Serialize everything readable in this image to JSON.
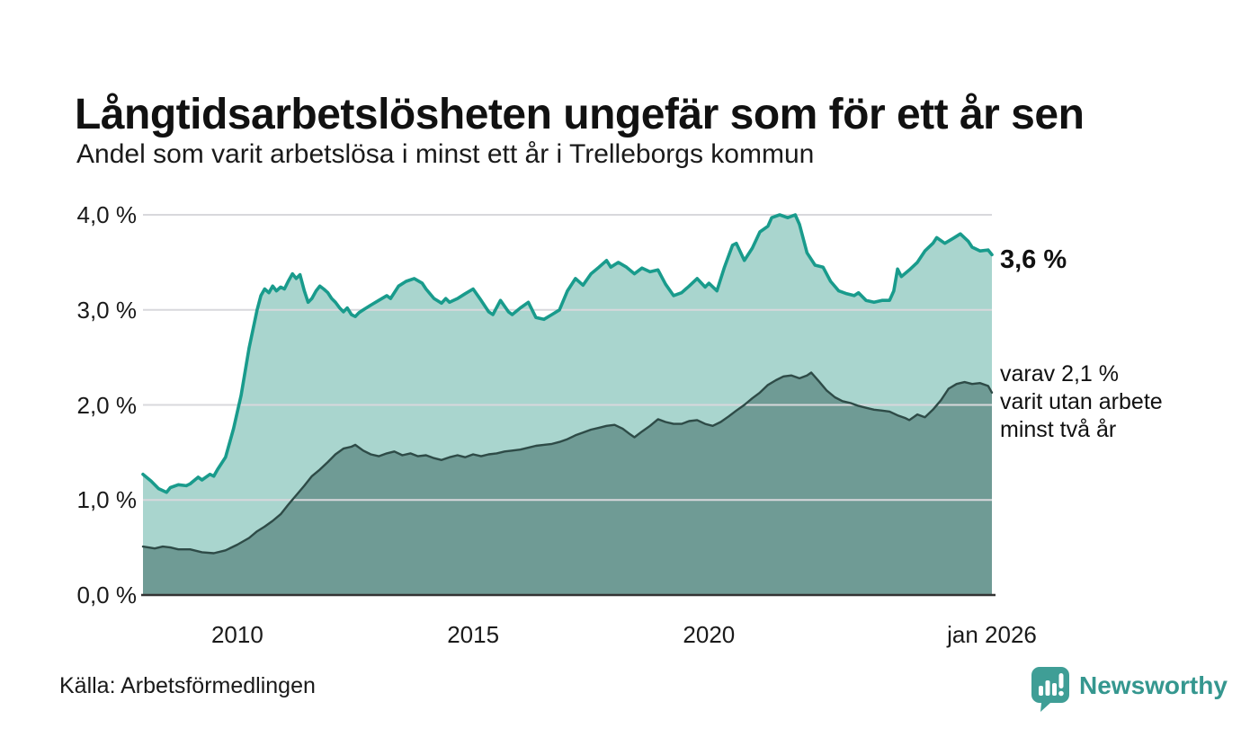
{
  "header": {
    "title": "Långtidsarbetslösheten ungefär som för ett år sen",
    "subtitle": "Andel som varit arbetslösa i minst ett år i Trelleborgs kommun"
  },
  "annotations": {
    "latest_total": "3,6 %",
    "subseries_lines": [
      "varav 2,1 %",
      "varit utan arbete",
      "minst två år"
    ]
  },
  "footer": {
    "source": "Källa: Arbetsförmedlingen",
    "brand": "Newsworthy"
  },
  "colors": {
    "accent_line": "#199b8c",
    "accent_fill": "#a9d5ce",
    "dark_line": "#2e4b47",
    "dark_fill": "#6f9b95",
    "gridline": "#d8d8dc",
    "axis": "#333333",
    "text": "#111111",
    "brand_teal": "#35978f",
    "logo_fill": "#3f9e96"
  },
  "chart_data": {
    "type": "area",
    "title": "Långtidsarbetslösheten ungefär som för ett år sen",
    "subtitle": "Andel som varit arbetslösa i minst ett år i Trelleborgs kommun",
    "xlabel": "",
    "ylabel": "",
    "xlim": [
      2008,
      2026.0
    ],
    "ylim": [
      0,
      4
    ],
    "grid": true,
    "legend_position": "annotated-right",
    "y_ticks": [
      {
        "value": 0,
        "label": "0,0 %"
      },
      {
        "value": 1,
        "label": "1,0 %"
      },
      {
        "value": 2,
        "label": "2,0 %"
      },
      {
        "value": 3,
        "label": "3,0 %"
      },
      {
        "value": 4,
        "label": "4,0 %"
      }
    ],
    "x_ticks": [
      {
        "value": 2010,
        "label": "2010"
      },
      {
        "value": 2015,
        "label": "2015"
      },
      {
        "value": 2020,
        "label": "2020"
      },
      {
        "value": 2026.0,
        "label": "jan 2026"
      }
    ],
    "series": [
      {
        "name": "Andel arbetslösa minst ett år",
        "end_label": "3,6 %",
        "color": "#199b8c",
        "fill": "#a9d5ce",
        "points": [
          [
            2008.0,
            1.27
          ],
          [
            2008.17,
            1.2
          ],
          [
            2008.33,
            1.12
          ],
          [
            2008.5,
            1.08
          ],
          [
            2008.58,
            1.13
          ],
          [
            2008.75,
            1.16
          ],
          [
            2008.92,
            1.15
          ],
          [
            2009.0,
            1.17
          ],
          [
            2009.17,
            1.24
          ],
          [
            2009.25,
            1.21
          ],
          [
            2009.42,
            1.27
          ],
          [
            2009.5,
            1.25
          ],
          [
            2009.58,
            1.32
          ],
          [
            2009.75,
            1.45
          ],
          [
            2009.92,
            1.75
          ],
          [
            2010.08,
            2.1
          ],
          [
            2010.25,
            2.6
          ],
          [
            2010.42,
            3.0
          ],
          [
            2010.5,
            3.15
          ],
          [
            2010.58,
            3.22
          ],
          [
            2010.67,
            3.18
          ],
          [
            2010.75,
            3.25
          ],
          [
            2010.83,
            3.2
          ],
          [
            2010.92,
            3.24
          ],
          [
            2011.0,
            3.22
          ],
          [
            2011.08,
            3.3
          ],
          [
            2011.17,
            3.38
          ],
          [
            2011.25,
            3.33
          ],
          [
            2011.33,
            3.37
          ],
          [
            2011.42,
            3.2
          ],
          [
            2011.5,
            3.08
          ],
          [
            2011.58,
            3.12
          ],
          [
            2011.67,
            3.2
          ],
          [
            2011.75,
            3.25
          ],
          [
            2011.83,
            3.22
          ],
          [
            2011.92,
            3.18
          ],
          [
            2012.0,
            3.12
          ],
          [
            2012.08,
            3.08
          ],
          [
            2012.17,
            3.02
          ],
          [
            2012.25,
            2.98
          ],
          [
            2012.33,
            3.02
          ],
          [
            2012.42,
            2.95
          ],
          [
            2012.5,
            2.93
          ],
          [
            2012.58,
            2.97
          ],
          [
            2012.67,
            3.0
          ],
          [
            2012.83,
            3.05
          ],
          [
            2013.0,
            3.1
          ],
          [
            2013.17,
            3.15
          ],
          [
            2013.25,
            3.12
          ],
          [
            2013.42,
            3.25
          ],
          [
            2013.58,
            3.3
          ],
          [
            2013.75,
            3.33
          ],
          [
            2013.92,
            3.28
          ],
          [
            2014.0,
            3.22
          ],
          [
            2014.17,
            3.12
          ],
          [
            2014.33,
            3.07
          ],
          [
            2014.42,
            3.12
          ],
          [
            2014.5,
            3.08
          ],
          [
            2014.67,
            3.12
          ],
          [
            2014.83,
            3.17
          ],
          [
            2015.0,
            3.22
          ],
          [
            2015.17,
            3.1
          ],
          [
            2015.33,
            2.98
          ],
          [
            2015.42,
            2.95
          ],
          [
            2015.58,
            3.1
          ],
          [
            2015.75,
            2.98
          ],
          [
            2015.83,
            2.95
          ],
          [
            2016.0,
            3.02
          ],
          [
            2016.17,
            3.08
          ],
          [
            2016.33,
            2.92
          ],
          [
            2016.5,
            2.9
          ],
          [
            2016.67,
            2.95
          ],
          [
            2016.83,
            3.0
          ],
          [
            2017.0,
            3.2
          ],
          [
            2017.17,
            3.33
          ],
          [
            2017.33,
            3.26
          ],
          [
            2017.5,
            3.38
          ],
          [
            2017.67,
            3.45
          ],
          [
            2017.83,
            3.52
          ],
          [
            2017.92,
            3.45
          ],
          [
            2018.08,
            3.5
          ],
          [
            2018.25,
            3.45
          ],
          [
            2018.42,
            3.38
          ],
          [
            2018.58,
            3.44
          ],
          [
            2018.75,
            3.4
          ],
          [
            2018.92,
            3.42
          ],
          [
            2019.08,
            3.27
          ],
          [
            2019.25,
            3.15
          ],
          [
            2019.42,
            3.18
          ],
          [
            2019.58,
            3.25
          ],
          [
            2019.75,
            3.33
          ],
          [
            2019.92,
            3.24
          ],
          [
            2020.0,
            3.28
          ],
          [
            2020.17,
            3.2
          ],
          [
            2020.33,
            3.45
          ],
          [
            2020.5,
            3.68
          ],
          [
            2020.58,
            3.7
          ],
          [
            2020.75,
            3.52
          ],
          [
            2020.92,
            3.65
          ],
          [
            2021.08,
            3.82
          ],
          [
            2021.25,
            3.88
          ],
          [
            2021.33,
            3.97
          ],
          [
            2021.5,
            4.0
          ],
          [
            2021.67,
            3.97
          ],
          [
            2021.83,
            4.0
          ],
          [
            2021.92,
            3.9
          ],
          [
            2022.08,
            3.6
          ],
          [
            2022.25,
            3.47
          ],
          [
            2022.42,
            3.45
          ],
          [
            2022.58,
            3.3
          ],
          [
            2022.75,
            3.2
          ],
          [
            2022.92,
            3.17
          ],
          [
            2023.08,
            3.15
          ],
          [
            2023.17,
            3.18
          ],
          [
            2023.33,
            3.1
          ],
          [
            2023.5,
            3.08
          ],
          [
            2023.67,
            3.1
          ],
          [
            2023.83,
            3.1
          ],
          [
            2023.92,
            3.2
          ],
          [
            2024.0,
            3.43
          ],
          [
            2024.08,
            3.35
          ],
          [
            2024.25,
            3.42
          ],
          [
            2024.42,
            3.5
          ],
          [
            2024.58,
            3.62
          ],
          [
            2024.75,
            3.7
          ],
          [
            2024.83,
            3.76
          ],
          [
            2025.0,
            3.7
          ],
          [
            2025.17,
            3.75
          ],
          [
            2025.33,
            3.8
          ],
          [
            2025.5,
            3.72
          ],
          [
            2025.58,
            3.66
          ],
          [
            2025.75,
            3.62
          ],
          [
            2025.92,
            3.63
          ],
          [
            2026.0,
            3.58
          ]
        ]
      },
      {
        "name": "Andel arbetslösa minst två år",
        "end_label": "varav 2,1 % varit utan arbete minst två år",
        "color": "#2e4b47",
        "fill": "#6f9b95",
        "points": [
          [
            2008.0,
            0.51
          ],
          [
            2008.25,
            0.49
          ],
          [
            2008.42,
            0.51
          ],
          [
            2008.58,
            0.5
          ],
          [
            2008.75,
            0.48
          ],
          [
            2009.0,
            0.48
          ],
          [
            2009.25,
            0.45
          ],
          [
            2009.5,
            0.44
          ],
          [
            2009.75,
            0.47
          ],
          [
            2010.0,
            0.53
          ],
          [
            2010.25,
            0.6
          ],
          [
            2010.42,
            0.67
          ],
          [
            2010.58,
            0.72
          ],
          [
            2010.75,
            0.78
          ],
          [
            2010.92,
            0.85
          ],
          [
            2011.08,
            0.95
          ],
          [
            2011.25,
            1.05
          ],
          [
            2011.42,
            1.15
          ],
          [
            2011.58,
            1.25
          ],
          [
            2011.75,
            1.32
          ],
          [
            2011.92,
            1.4
          ],
          [
            2012.08,
            1.48
          ],
          [
            2012.25,
            1.54
          ],
          [
            2012.42,
            1.56
          ],
          [
            2012.5,
            1.58
          ],
          [
            2012.67,
            1.52
          ],
          [
            2012.83,
            1.48
          ],
          [
            2013.0,
            1.46
          ],
          [
            2013.17,
            1.49
          ],
          [
            2013.33,
            1.51
          ],
          [
            2013.5,
            1.47
          ],
          [
            2013.67,
            1.49
          ],
          [
            2013.83,
            1.46
          ],
          [
            2014.0,
            1.47
          ],
          [
            2014.17,
            1.44
          ],
          [
            2014.33,
            1.42
          ],
          [
            2014.5,
            1.45
          ],
          [
            2014.67,
            1.47
          ],
          [
            2014.83,
            1.45
          ],
          [
            2015.0,
            1.48
          ],
          [
            2015.17,
            1.46
          ],
          [
            2015.33,
            1.48
          ],
          [
            2015.5,
            1.49
          ],
          [
            2015.67,
            1.51
          ],
          [
            2015.83,
            1.52
          ],
          [
            2016.0,
            1.53
          ],
          [
            2016.17,
            1.55
          ],
          [
            2016.33,
            1.57
          ],
          [
            2016.5,
            1.58
          ],
          [
            2016.67,
            1.59
          ],
          [
            2016.83,
            1.61
          ],
          [
            2017.0,
            1.64
          ],
          [
            2017.17,
            1.68
          ],
          [
            2017.33,
            1.71
          ],
          [
            2017.5,
            1.74
          ],
          [
            2017.67,
            1.76
          ],
          [
            2017.83,
            1.78
          ],
          [
            2018.0,
            1.79
          ],
          [
            2018.17,
            1.75
          ],
          [
            2018.33,
            1.69
          ],
          [
            2018.42,
            1.66
          ],
          [
            2018.58,
            1.72
          ],
          [
            2018.75,
            1.78
          ],
          [
            2018.92,
            1.85
          ],
          [
            2019.08,
            1.82
          ],
          [
            2019.25,
            1.8
          ],
          [
            2019.42,
            1.8
          ],
          [
            2019.58,
            1.83
          ],
          [
            2019.75,
            1.84
          ],
          [
            2019.92,
            1.8
          ],
          [
            2020.08,
            1.78
          ],
          [
            2020.25,
            1.82
          ],
          [
            2020.42,
            1.88
          ],
          [
            2020.58,
            1.94
          ],
          [
            2020.75,
            2.0
          ],
          [
            2020.92,
            2.07
          ],
          [
            2021.08,
            2.13
          ],
          [
            2021.25,
            2.21
          ],
          [
            2021.42,
            2.26
          ],
          [
            2021.58,
            2.3
          ],
          [
            2021.75,
            2.31
          ],
          [
            2021.92,
            2.28
          ],
          [
            2022.08,
            2.31
          ],
          [
            2022.17,
            2.34
          ],
          [
            2022.33,
            2.25
          ],
          [
            2022.5,
            2.15
          ],
          [
            2022.67,
            2.08
          ],
          [
            2022.83,
            2.04
          ],
          [
            2023.0,
            2.02
          ],
          [
            2023.17,
            1.99
          ],
          [
            2023.33,
            1.97
          ],
          [
            2023.5,
            1.95
          ],
          [
            2023.67,
            1.94
          ],
          [
            2023.83,
            1.93
          ],
          [
            2024.0,
            1.89
          ],
          [
            2024.17,
            1.86
          ],
          [
            2024.25,
            1.84
          ],
          [
            2024.42,
            1.9
          ],
          [
            2024.58,
            1.87
          ],
          [
            2024.75,
            1.95
          ],
          [
            2024.92,
            2.05
          ],
          [
            2025.08,
            2.17
          ],
          [
            2025.25,
            2.22
          ],
          [
            2025.42,
            2.24
          ],
          [
            2025.58,
            2.22
          ],
          [
            2025.75,
            2.23
          ],
          [
            2025.92,
            2.2
          ],
          [
            2026.0,
            2.13
          ]
        ]
      }
    ]
  }
}
